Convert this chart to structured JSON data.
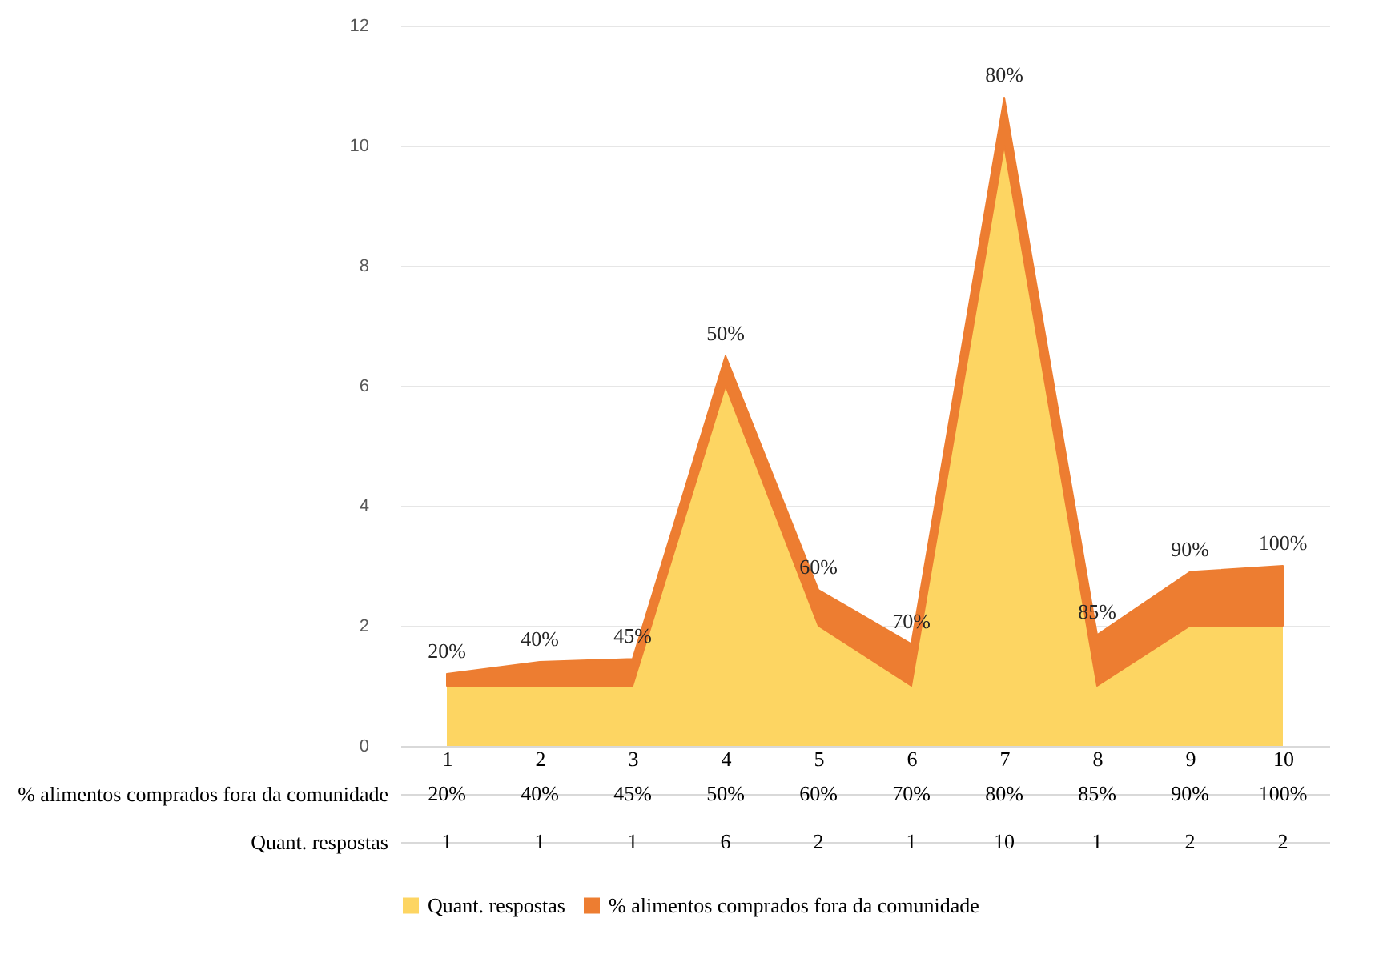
{
  "chart_data": {
    "type": "area",
    "stacked": true,
    "grid": "y",
    "legend": "bottom",
    "categories": [
      "1",
      "2",
      "3",
      "4",
      "5",
      "6",
      "7",
      "8",
      "9",
      "10"
    ],
    "ylim": [
      0,
      12
    ],
    "yticks": [
      0,
      2,
      4,
      6,
      8,
      10,
      12
    ],
    "series": [
      {
        "name": "Quant. respostas",
        "color": "#fdd562",
        "values": [
          1,
          1,
          1,
          6,
          2,
          1,
          10,
          1,
          2,
          2
        ],
        "value_labels": [
          "1",
          "1",
          "1",
          "6",
          "2",
          "1",
          "10",
          "1",
          "2",
          "2"
        ]
      },
      {
        "name": "% alimentos comprados fora da comunidade",
        "color": "#ed7d31",
        "values": [
          0.2,
          0.4,
          0.45,
          0.5,
          0.6,
          0.7,
          0.8,
          0.85,
          0.9,
          1.0
        ],
        "value_labels": [
          "20%",
          "40%",
          "45%",
          "50%",
          "60%",
          "70%",
          "80%",
          "85%",
          "90%",
          "100%"
        ]
      }
    ]
  }
}
